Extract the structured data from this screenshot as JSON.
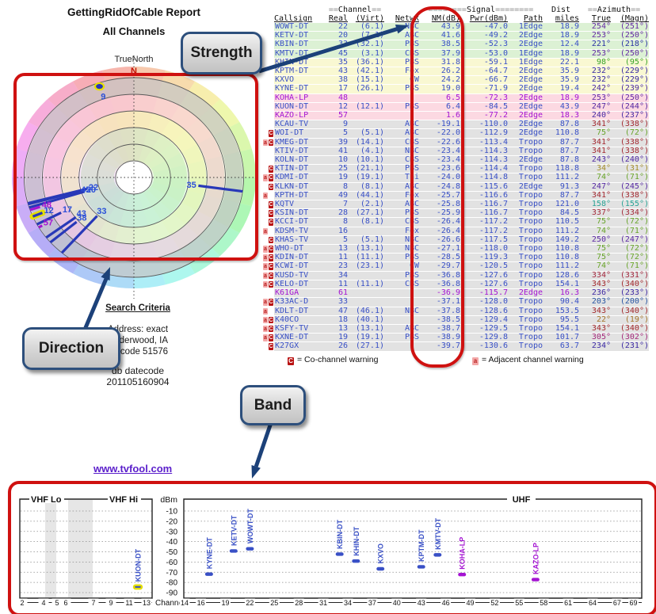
{
  "header": {
    "title": "GettingRidOfCable Report",
    "subtitle": "All Channels",
    "compass": "TrueNorth",
    "north": "N"
  },
  "callouts": {
    "strength": "Strength",
    "direction": "Direction",
    "band": "Band"
  },
  "search": {
    "heading": "Search Criteria",
    "line1": "Address: exact",
    "line2": "Underwood, IA",
    "line3": "Zipcode 51576"
  },
  "datecode": {
    "label": "db datecode",
    "value": "201105160904"
  },
  "link": {
    "text": "www.tvfool.com"
  },
  "legend": {
    "co_symbol": "C",
    "co_text": "= Co-channel warning",
    "adj_symbol": "a",
    "adj_text": "= Adjacent channel warning"
  },
  "colors": {
    "accent_red": "#cf1110",
    "arrow_blue": "#1c4179",
    "blue": "#3950c6",
    "magenta": "#a414d2",
    "yellow_highlight": "#e5df00",
    "row_green": "#dcf1d4",
    "row_yellow": "#f9f8d2",
    "row_pink": "#fcd9e2",
    "row_gray": "#e2e2e2",
    "co_badge": "#b91313",
    "adj_badge": "#f3a8a8",
    "link_purple": "#5a1ecb"
  },
  "table": {
    "groups": {
      "channel_pre": "==",
      "channel": "Channel",
      "channel_post": "==",
      "signal_pre": "========",
      "signal": "Signal",
      "signal_post": "========",
      "dist": "Dist",
      "azimuth_pre": "==",
      "azimuth": "Azimuth",
      "azimuth_post": "=="
    },
    "cols": {
      "callsign": "Callsign",
      "real": "Real",
      "virt": "(Virt)",
      "netwk": "Netwk",
      "nm": "NM(dB)",
      "pwr": "Pwr(dBm)",
      "path": "Path",
      "miles": "miles",
      "true": "True",
      "magn": "(Magn)"
    },
    "rows": [
      {
        "w": "",
        "cs": "WOWT-DT",
        "real": "22",
        "virt": "(6.1)",
        "net": "NBC",
        "nm": "43.9",
        "pwr": "-47.0",
        "path": "1Edge",
        "mi": "18.9",
        "azt": 254,
        "azm": 251,
        "band": "green",
        "lp": false
      },
      {
        "w": "",
        "cs": "KETV-DT",
        "real": "20",
        "virt": "(7.1)",
        "net": "ABC",
        "nm": "41.6",
        "pwr": "-49.2",
        "path": "2Edge",
        "mi": "18.9",
        "azt": 253,
        "azm": 250,
        "band": "green",
        "lp": false
      },
      {
        "w": "",
        "cs": "KBIN-DT",
        "real": "33",
        "virt": "(32.1)",
        "net": "PBS",
        "nm": "38.5",
        "pwr": "-52.3",
        "path": "2Edge",
        "mi": "12.4",
        "azt": 221,
        "azm": 218,
        "band": "green",
        "lp": false
      },
      {
        "w": "",
        "cs": "KMTV-DT",
        "real": "45",
        "virt": "(3.1)",
        "net": "CBS",
        "nm": "37.9",
        "pwr": "-53.0",
        "path": "1Edge",
        "mi": "18.9",
        "azt": 253,
        "azm": 250,
        "band": "green",
        "lp": false
      },
      {
        "w": "",
        "cs": "KHIN-DT",
        "real": "35",
        "virt": "(36.1)",
        "net": "PBS",
        "nm": "31.8",
        "pwr": "-59.1",
        "path": "1Edge",
        "mi": "22.1",
        "azt": 98,
        "azm": 95,
        "band": "yellow",
        "lp": false
      },
      {
        "w": "",
        "cs": "KPTM-DT",
        "real": "43",
        "virt": "(42.1)",
        "net": "Fox",
        "nm": "26.2",
        "pwr": "-64.7",
        "path": "2Edge",
        "mi": "35.9",
        "azt": 232,
        "azm": 229,
        "band": "yellow",
        "lp": false
      },
      {
        "w": "",
        "cs": "KXVO",
        "real": "38",
        "virt": "(15.1)",
        "net": "CW",
        "nm": "24.2",
        "pwr": "-66.7",
        "path": "2Edge",
        "mi": "35.9",
        "azt": 232,
        "azm": 229,
        "band": "yellow",
        "lp": false
      },
      {
        "w": "",
        "cs": "KYNE-DT",
        "real": "17",
        "virt": "(26.1)",
        "net": "PBS",
        "nm": "19.0",
        "pwr": "-71.9",
        "path": "2Edge",
        "mi": "19.4",
        "azt": 242,
        "azm": 239,
        "band": "yellow",
        "lp": false
      },
      {
        "w": "",
        "cs": "KOHA-LP",
        "real": "48",
        "virt": "",
        "net": "",
        "nm": "6.5",
        "pwr": "-72.3",
        "path": "2Edge",
        "mi": "18.9",
        "azt": 253,
        "azm": 250,
        "band": "pink",
        "lp": true
      },
      {
        "w": "",
        "cs": "KUON-DT",
        "real": "12",
        "virt": "(12.1)",
        "net": "PBS",
        "nm": "6.4",
        "pwr": "-84.5",
        "path": "2Edge",
        "mi": "43.9",
        "azt": 247,
        "azm": 244,
        "band": "pink",
        "lp": false
      },
      {
        "w": "",
        "cs": "KAZO-LP",
        "real": "57",
        "virt": "",
        "net": "",
        "nm": "1.6",
        "pwr": "-77.2",
        "path": "2Edge",
        "mi": "18.3",
        "azt": 240,
        "azm": 237,
        "band": "pink",
        "lp": true
      },
      {
        "w": "",
        "cs": "KCAU-TV",
        "real": "9",
        "virt": "",
        "net": "ABC",
        "nm": "-19.1",
        "pwr": "-110.0",
        "path": "2Edge",
        "mi": "87.8",
        "azt": 341,
        "azm": 338,
        "band": "gray",
        "lp": false
      },
      {
        "w": "C",
        "cs": "WOI-DT",
        "real": "5",
        "virt": "(5.1)",
        "net": "ABC",
        "nm": "-22.0",
        "pwr": "-112.9",
        "path": "2Edge",
        "mi": "110.8",
        "azt": 75,
        "azm": 72,
        "band": "gray",
        "lp": false
      },
      {
        "w": "aC",
        "cs": "KMEG-DT",
        "real": "39",
        "virt": "(14.1)",
        "net": "CBS",
        "nm": "-22.6",
        "pwr": "-113.4",
        "path": "Tropo",
        "mi": "87.7",
        "azt": 341,
        "azm": 338,
        "band": "gray",
        "lp": false
      },
      {
        "w": "",
        "cs": "KTIV-DT",
        "real": "41",
        "virt": "(4.1)",
        "net": "NBC",
        "nm": "-23.4",
        "pwr": "-114.3",
        "path": "Tropo",
        "mi": "87.7",
        "azt": 341,
        "azm": 338,
        "band": "gray",
        "lp": false
      },
      {
        "w": "",
        "cs": "KOLN-DT",
        "real": "10",
        "virt": "(10.1)",
        "net": "CBS",
        "nm": "-23.4",
        "pwr": "-114.3",
        "path": "2Edge",
        "mi": "87.8",
        "azt": 243,
        "azm": 240,
        "band": "gray",
        "lp": false
      },
      {
        "w": "C",
        "cs": "KTIN-DT",
        "real": "25",
        "virt": "(21.1)",
        "net": "PBS",
        "nm": "-23.6",
        "pwr": "-114.4",
        "path": "Tropo",
        "mi": "118.8",
        "azt": 34,
        "azm": 31,
        "band": "gray",
        "lp": false
      },
      {
        "w": "aC",
        "cs": "KDMI-DT",
        "real": "19",
        "virt": "(19.1)",
        "net": "Thi",
        "nm": "-24.0",
        "pwr": "-114.8",
        "path": "Tropo",
        "mi": "111.2",
        "azt": 74,
        "azm": 71,
        "band": "gray",
        "lp": false
      },
      {
        "w": "C",
        "cs": "KLKN-DT",
        "real": "8",
        "virt": "(8.1)",
        "net": "ABC",
        "nm": "-24.8",
        "pwr": "-115.6",
        "path": "2Edge",
        "mi": "91.3",
        "azt": 247,
        "azm": 245,
        "band": "gray",
        "lp": false
      },
      {
        "w": "a",
        "cs": "KPTH-DT",
        "real": "49",
        "virt": "(44.1)",
        "net": "Fox",
        "nm": "-25.7",
        "pwr": "-116.6",
        "path": "Tropo",
        "mi": "87.7",
        "azt": 341,
        "azm": 338,
        "band": "gray",
        "lp": false
      },
      {
        "w": "C",
        "cs": "KQTV",
        "real": "7",
        "virt": "(2.1)",
        "net": "ABC",
        "nm": "-25.8",
        "pwr": "-116.7",
        "path": "Tropo",
        "mi": "121.0",
        "azt": 158,
        "azm": 155,
        "band": "gray",
        "lp": false
      },
      {
        "w": "C",
        "cs": "KSIN-DT",
        "real": "28",
        "virt": "(27.1)",
        "net": "PBS",
        "nm": "-25.9",
        "pwr": "-116.7",
        "path": "Tropo",
        "mi": "84.5",
        "azt": 337,
        "azm": 334,
        "band": "gray",
        "lp": false
      },
      {
        "w": "C",
        "cs": "KCCI-DT",
        "real": "8",
        "virt": "(8.1)",
        "net": "CBS",
        "nm": "-26.4",
        "pwr": "-117.2",
        "path": "Tropo",
        "mi": "110.5",
        "azt": 75,
        "azm": 72,
        "band": "gray",
        "lp": false
      },
      {
        "w": "a",
        "cs": "KDSM-TV",
        "real": "16",
        "virt": "",
        "net": "Fox",
        "nm": "-26.4",
        "pwr": "-117.2",
        "path": "Tropo",
        "mi": "111.2",
        "azt": 74,
        "azm": 71,
        "band": "gray",
        "lp": false
      },
      {
        "w": "C",
        "cs": "KHAS-TV",
        "real": "5",
        "virt": "(5.1)",
        "net": "NBC",
        "nm": "-26.6",
        "pwr": "-117.5",
        "path": "Tropo",
        "mi": "149.2",
        "azt": 250,
        "azm": 247,
        "band": "gray",
        "lp": false
      },
      {
        "w": "aC",
        "cs": "WHO-DT",
        "real": "13",
        "virt": "(13.1)",
        "net": "NBC",
        "nm": "-27.1",
        "pwr": "-118.0",
        "path": "Tropo",
        "mi": "110.8",
        "azt": 75,
        "azm": 72,
        "band": "gray",
        "lp": false
      },
      {
        "w": "aC",
        "cs": "KDIN-DT",
        "real": "11",
        "virt": "(11.1)",
        "net": "PBS",
        "nm": "-28.5",
        "pwr": "-119.3",
        "path": "Tropo",
        "mi": "110.8",
        "azt": 75,
        "azm": 72,
        "band": "gray",
        "lp": false
      },
      {
        "w": "aC",
        "cs": "KCWI-DT",
        "real": "23",
        "virt": "(23.1)",
        "net": "CW",
        "nm": "-29.7",
        "pwr": "-120.5",
        "path": "Tropo",
        "mi": "111.2",
        "azt": 74,
        "azm": 71,
        "band": "gray",
        "lp": false
      },
      {
        "w": "aC",
        "cs": "KUSD-TV",
        "real": "34",
        "virt": "",
        "net": "PBS",
        "nm": "-36.8",
        "pwr": "-127.6",
        "path": "Tropo",
        "mi": "128.6",
        "azt": 334,
        "azm": 331,
        "band": "gray",
        "lp": false
      },
      {
        "w": "aC",
        "cs": "KELO-DT",
        "real": "11",
        "virt": "(11.1)",
        "net": "CBS",
        "nm": "-36.8",
        "pwr": "-127.6",
        "path": "Tropo",
        "mi": "154.1",
        "azt": 343,
        "azm": 340,
        "band": "gray",
        "lp": false
      },
      {
        "w": "",
        "cs": "K61GA",
        "real": "61",
        "virt": "",
        "net": "",
        "nm": "-36.9",
        "pwr": "-115.7",
        "path": "2Edge",
        "mi": "16.3",
        "azt": 236,
        "azm": 233,
        "band": "gray",
        "lp": true
      },
      {
        "w": "aC",
        "cs": "K33AC-D",
        "real": "33",
        "virt": "",
        "net": "",
        "nm": "-37.1",
        "pwr": "-128.0",
        "path": "Tropo",
        "mi": "90.4",
        "azt": 203,
        "azm": 200,
        "band": "gray",
        "lp": false
      },
      {
        "w": "a",
        "cs": "KDLT-DT",
        "real": "47",
        "virt": "(46.1)",
        "net": "NBC",
        "nm": "-37.8",
        "pwr": "-128.6",
        "path": "Tropo",
        "mi": "153.5",
        "azt": 343,
        "azm": 340,
        "band": "gray",
        "lp": false
      },
      {
        "w": "aC",
        "cs": "K40CO",
        "real": "18",
        "virt": "(40.1)",
        "net": "",
        "nm": "-38.5",
        "pwr": "-129.4",
        "path": "Tropo",
        "mi": "95.5",
        "azt": 22,
        "azm": 19,
        "band": "gray",
        "lp": false
      },
      {
        "w": "aC",
        "cs": "KSFY-TV",
        "real": "13",
        "virt": "(13.1)",
        "net": "ABC",
        "nm": "-38.7",
        "pwr": "-129.5",
        "path": "Tropo",
        "mi": "154.1",
        "azt": 343,
        "azm": 340,
        "band": "gray",
        "lp": false
      },
      {
        "w": "aC",
        "cs": "KXNE-DT",
        "real": "19",
        "virt": "(19.1)",
        "net": "PBS",
        "nm": "-38.9",
        "pwr": "-129.8",
        "path": "Tropo",
        "mi": "101.7",
        "azt": 305,
        "azm": 302,
        "band": "gray",
        "lp": false
      },
      {
        "w": "C",
        "cs": "K27GX",
        "real": "26",
        "virt": "(27.1)",
        "net": "",
        "nm": "-39.7",
        "pwr": "-130.6",
        "path": "Tropo",
        "mi": "63.7",
        "azt": 234,
        "azm": 231,
        "band": "gray",
        "lp": false
      }
    ]
  },
  "chart_data": [
    {
      "type": "scatter",
      "subtype": "polar-radar",
      "title": "All Channels",
      "orientation_label": "TrueNorth",
      "north_marker": "N",
      "notes": "spoke length proportional to NM(dB); azimuth = true bearing; yellow = highlighted stations",
      "points": [
        {
          "ch": 9,
          "az": 341,
          "nm": -19.1,
          "lp": false,
          "dot": true,
          "hl": true
        },
        {
          "ch": 35,
          "az": 98,
          "nm": 31.8,
          "lp": false
        },
        {
          "ch": 22,
          "az": 254,
          "nm": 43.9,
          "lp": false
        },
        {
          "ch": 20,
          "az": 253,
          "nm": 41.6,
          "lp": false
        },
        {
          "ch": 45,
          "az": 253,
          "nm": 37.9,
          "lp": false
        },
        {
          "ch": 33,
          "az": 221,
          "nm": 38.5,
          "lp": false
        },
        {
          "ch": 43,
          "az": 232,
          "nm": 26.2,
          "lp": false
        },
        {
          "ch": 38,
          "az": 232,
          "nm": 24.2,
          "lp": false
        },
        {
          "ch": 17,
          "az": 242,
          "nm": 19.0,
          "lp": false
        },
        {
          "ch": 12,
          "az": 247,
          "nm": 6.4,
          "lp": false,
          "hl": true
        },
        {
          "ch": 48,
          "az": 253,
          "nm": 6.5,
          "lp": true
        },
        {
          "ch": 57,
          "az": 240,
          "nm": 1.6,
          "lp": true
        }
      ]
    },
    {
      "type": "scatter",
      "subtype": "band-plot",
      "xlabel": "Channel",
      "ylabel": "dBm",
      "ylim": [
        -90,
        -10
      ],
      "yticks": [
        -10,
        -20,
        -30,
        -40,
        -50,
        -60,
        -70,
        -80,
        -90
      ],
      "band_labels": {
        "vhf_lo": "VHF Lo",
        "vhf_hi": "VHF Hi",
        "uhf": "UHF"
      },
      "vhf_ticks": [
        2,
        4,
        5,
        6,
        7,
        9,
        11,
        13
      ],
      "uhf_ticks": [
        14,
        16,
        19,
        22,
        25,
        28,
        31,
        34,
        37,
        40,
        43,
        46,
        49,
        52,
        55,
        58,
        61,
        64,
        67,
        69
      ],
      "points": [
        {
          "cs": "KUON-DT",
          "ch": 12,
          "dbm": -84.5,
          "lp": false,
          "hl": true
        },
        {
          "cs": "KYNE-DT",
          "ch": 17,
          "dbm": -71.9,
          "lp": false
        },
        {
          "cs": "KETV-DT",
          "ch": 20,
          "dbm": -49.2,
          "lp": false
        },
        {
          "cs": "WOWT-DT",
          "ch": 22,
          "dbm": -47.0,
          "lp": false
        },
        {
          "cs": "KBIN-DT",
          "ch": 33,
          "dbm": -52.3,
          "lp": false
        },
        {
          "cs": "KHIN-DT",
          "ch": 35,
          "dbm": -59.1,
          "lp": false
        },
        {
          "cs": "KXVO",
          "ch": 38,
          "dbm": -66.7,
          "lp": false
        },
        {
          "cs": "KPTM-DT",
          "ch": 43,
          "dbm": -64.7,
          "lp": false
        },
        {
          "cs": "KMTV-DT",
          "ch": 45,
          "dbm": -53.0,
          "lp": false
        },
        {
          "cs": "KOHA-LP",
          "ch": 48,
          "dbm": -72.3,
          "lp": true
        },
        {
          "cs": "KAZO-LP",
          "ch": 57,
          "dbm": -77.2,
          "lp": true
        }
      ]
    }
  ]
}
